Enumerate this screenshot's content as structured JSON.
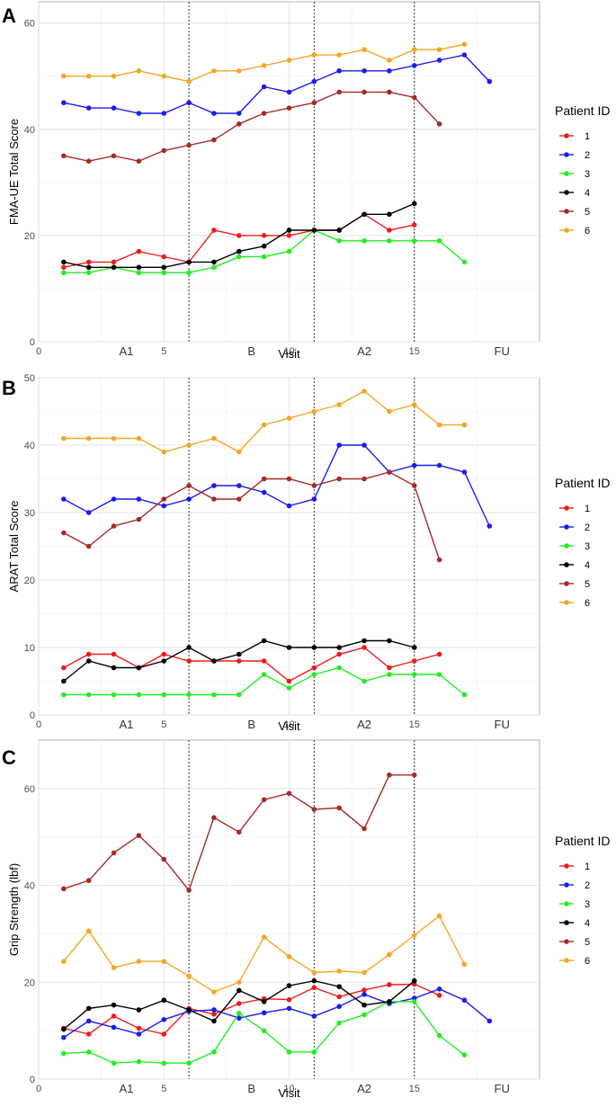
{
  "chart_data": [
    {
      "type": "line",
      "panel": "A",
      "title": "",
      "xlabel": "Visit",
      "ylabel": "FMA-UE Total Score",
      "xlim": [
        0,
        20
      ],
      "ylim": [
        0,
        64
      ],
      "xticks": [
        0,
        5,
        10,
        15
      ],
      "yticks": [
        0,
        20,
        40,
        60
      ],
      "phase_labels": [
        {
          "x": 3.5,
          "text": "A1"
        },
        {
          "x": 8.5,
          "text": "B"
        },
        {
          "x": 13.0,
          "text": "A2"
        },
        {
          "x": 18.5,
          "text": "FU"
        }
      ],
      "phase_dividers": [
        6,
        11,
        15
      ],
      "legend_title": "Patient ID",
      "series": [
        {
          "name": "1",
          "color": "#ee1c1c",
          "x": [
            1,
            2,
            3,
            4,
            5,
            6,
            7,
            8,
            9,
            10,
            11,
            12,
            13,
            14,
            15,
            16
          ],
          "values": [
            14,
            15,
            15,
            17,
            16,
            15,
            21,
            20,
            20,
            20,
            21,
            21,
            24,
            21,
            22,
            null
          ]
        },
        {
          "name": "2",
          "color": "#1c1cee",
          "x": [
            1,
            2,
            3,
            4,
            5,
            6,
            7,
            8,
            9,
            10,
            11,
            12,
            13,
            14,
            15,
            16,
            17,
            18
          ],
          "values": [
            45,
            44,
            44,
            43,
            43,
            45,
            43,
            43,
            48,
            47,
            49,
            51,
            51,
            51,
            52,
            53,
            54,
            49
          ]
        },
        {
          "name": "3",
          "color": "#22ee22",
          "x": [
            1,
            2,
            3,
            4,
            5,
            6,
            7,
            8,
            9,
            10,
            11,
            12,
            13,
            14,
            15,
            16,
            17
          ],
          "values": [
            13,
            13,
            14,
            13,
            13,
            13,
            14,
            16,
            16,
            17,
            21,
            19,
            19,
            19,
            19,
            19,
            15
          ]
        },
        {
          "name": "4",
          "color": "#000000",
          "x": [
            1,
            2,
            3,
            4,
            5,
            6,
            7,
            8,
            9,
            10,
            11,
            12,
            13,
            14,
            15
          ],
          "values": [
            15,
            14,
            14,
            14,
            14,
            15,
            15,
            17,
            18,
            21,
            21,
            21,
            24,
            24,
            26
          ]
        },
        {
          "name": "5",
          "color": "#a52a2a",
          "x": [
            1,
            2,
            3,
            4,
            5,
            6,
            7,
            8,
            9,
            10,
            11,
            12,
            13,
            14,
            15,
            16
          ],
          "values": [
            35,
            34,
            35,
            34,
            36,
            37,
            38,
            41,
            43,
            44,
            45,
            47,
            47,
            47,
            46,
            41
          ]
        },
        {
          "name": "6",
          "color": "#f5a623",
          "x": [
            1,
            2,
            3,
            4,
            5,
            6,
            7,
            8,
            9,
            10,
            11,
            12,
            13,
            14,
            15,
            16,
            17
          ],
          "values": [
            50,
            50,
            50,
            51,
            50,
            49,
            51,
            51,
            52,
            53,
            54,
            54,
            55,
            53,
            55,
            55,
            56
          ]
        }
      ]
    },
    {
      "type": "line",
      "panel": "B",
      "title": "",
      "xlabel": "Visit",
      "ylabel": "ARAT Total Score",
      "xlim": [
        0,
        20
      ],
      "ylim": [
        0,
        50
      ],
      "xticks": [
        0,
        5,
        10,
        15
      ],
      "yticks": [
        0,
        10,
        20,
        30,
        40,
        50
      ],
      "phase_labels": [
        {
          "x": 3.5,
          "text": "A1"
        },
        {
          "x": 8.5,
          "text": "B"
        },
        {
          "x": 13.0,
          "text": "A2"
        },
        {
          "x": 18.5,
          "text": "FU"
        }
      ],
      "phase_dividers": [
        6,
        11,
        15
      ],
      "legend_title": "Patient ID",
      "series": [
        {
          "name": "1",
          "color": "#ee1c1c",
          "x": [
            1,
            2,
            3,
            4,
            5,
            6,
            7,
            8,
            9,
            10,
            11,
            12,
            13,
            14,
            15,
            16
          ],
          "values": [
            7,
            9,
            9,
            7,
            9,
            8,
            8,
            8,
            8,
            5,
            7,
            9,
            10,
            7,
            8,
            9
          ]
        },
        {
          "name": "2",
          "color": "#1c1cee",
          "x": [
            1,
            2,
            3,
            4,
            5,
            6,
            7,
            8,
            9,
            10,
            11,
            12,
            13,
            14,
            15,
            16,
            17,
            18
          ],
          "values": [
            32,
            30,
            32,
            32,
            31,
            32,
            34,
            34,
            33,
            31,
            32,
            40,
            40,
            36,
            37,
            37,
            36,
            28
          ]
        },
        {
          "name": "3",
          "color": "#22ee22",
          "x": [
            1,
            2,
            3,
            4,
            5,
            6,
            7,
            8,
            9,
            10,
            11,
            12,
            13,
            14,
            15,
            16,
            17
          ],
          "values": [
            3,
            3,
            3,
            3,
            3,
            3,
            3,
            3,
            6,
            4,
            6,
            7,
            5,
            6,
            6,
            6,
            3
          ]
        },
        {
          "name": "4",
          "color": "#000000",
          "x": [
            1,
            2,
            3,
            4,
            5,
            6,
            7,
            8,
            9,
            10,
            11,
            12,
            13,
            14,
            15
          ],
          "values": [
            5,
            8,
            7,
            7,
            8,
            10,
            8,
            9,
            11,
            10,
            10,
            10,
            11,
            11,
            10
          ]
        },
        {
          "name": "5",
          "color": "#a52a2a",
          "x": [
            1,
            2,
            3,
            4,
            5,
            6,
            7,
            8,
            9,
            10,
            11,
            12,
            13,
            14,
            15,
            16
          ],
          "values": [
            27,
            25,
            28,
            29,
            32,
            34,
            32,
            32,
            35,
            35,
            34,
            35,
            35,
            36,
            34,
            23
          ]
        },
        {
          "name": "6",
          "color": "#f5a623",
          "x": [
            1,
            2,
            3,
            4,
            5,
            6,
            7,
            8,
            9,
            10,
            11,
            12,
            13,
            14,
            15,
            16,
            17
          ],
          "values": [
            41,
            41,
            41,
            41,
            39,
            40,
            41,
            39,
            43,
            44,
            45,
            46,
            48,
            45,
            46,
            43,
            43
          ]
        }
      ]
    },
    {
      "type": "line",
      "panel": "C",
      "title": "",
      "xlabel": "Visit",
      "ylabel": "Grip Strength (lbf)",
      "xlim": [
        0,
        20
      ],
      "ylim": [
        0,
        70
      ],
      "xticks": [
        0,
        5,
        10,
        15
      ],
      "yticks": [
        0,
        20,
        40,
        60
      ],
      "phase_labels": [
        {
          "x": 3.5,
          "text": "A1"
        },
        {
          "x": 8.5,
          "text": "B"
        },
        {
          "x": 13.0,
          "text": "A2"
        },
        {
          "x": 18.5,
          "text": "FU"
        }
      ],
      "phase_dividers": [
        6,
        11,
        15
      ],
      "legend_title": "Patient ID",
      "series": [
        {
          "name": "1",
          "color": "#ee1c1c",
          "x": [
            1,
            2,
            3,
            4,
            5,
            6,
            7,
            8,
            9,
            10,
            11,
            12,
            13,
            14,
            15,
            16
          ],
          "values": [
            10.5,
            9.3,
            13,
            10.5,
            9.3,
            14.6,
            13.4,
            15.6,
            16.6,
            16.4,
            18.9,
            17,
            18.4,
            19.5,
            19.6,
            17.3
          ]
        },
        {
          "name": "2",
          "color": "#1c1cee",
          "x": [
            1,
            2,
            3,
            4,
            5,
            6,
            7,
            8,
            9,
            10,
            11,
            12,
            13,
            14,
            15,
            16,
            17,
            18
          ],
          "values": [
            8.6,
            12,
            10.7,
            9.3,
            12.3,
            14,
            14.3,
            12.6,
            13.7,
            14.6,
            13,
            15,
            17.5,
            15.6,
            16.7,
            18.6,
            16.3,
            12
          ]
        },
        {
          "name": "3",
          "color": "#22ee22",
          "x": [
            1,
            2,
            3,
            4,
            5,
            6,
            7,
            8,
            9,
            10,
            11,
            12,
            13,
            14,
            15,
            16,
            17
          ],
          "values": [
            5.3,
            5.6,
            3.3,
            3.6,
            3.3,
            3.3,
            5.6,
            13.6,
            10,
            5.6,
            5.6,
            11.6,
            13.3,
            16,
            16,
            9,
            5
          ]
        },
        {
          "name": "4",
          "color": "#000000",
          "x": [
            1,
            2,
            3,
            4,
            5,
            6,
            7,
            8,
            9,
            10,
            11,
            12,
            13,
            14,
            15
          ],
          "values": [
            10.3,
            14.6,
            15.3,
            14.3,
            16.3,
            14.3,
            12,
            18.3,
            16,
            19.3,
            20.3,
            19.1,
            15.3,
            16,
            20.3
          ]
        },
        {
          "name": "5",
          "color": "#a52a2a",
          "x": [
            1,
            2,
            3,
            4,
            5,
            6,
            7,
            8,
            9,
            10,
            11,
            12,
            13,
            14,
            15
          ],
          "values": [
            39.3,
            41,
            46.7,
            50.3,
            45.4,
            39,
            54,
            51,
            57.7,
            59,
            55.7,
            56,
            51.7,
            62.8,
            62.8
          ]
        },
        {
          "name": "6",
          "color": "#f5a623",
          "x": [
            1,
            2,
            3,
            4,
            5,
            6,
            7,
            8,
            9,
            10,
            11,
            12,
            13,
            14,
            15,
            16,
            17
          ],
          "values": [
            24.3,
            30.6,
            23,
            24.3,
            24.3,
            21.3,
            18,
            20,
            29.3,
            25.3,
            22,
            22.3,
            22,
            25.7,
            29.7,
            33.7,
            23.7
          ]
        }
      ]
    }
  ]
}
